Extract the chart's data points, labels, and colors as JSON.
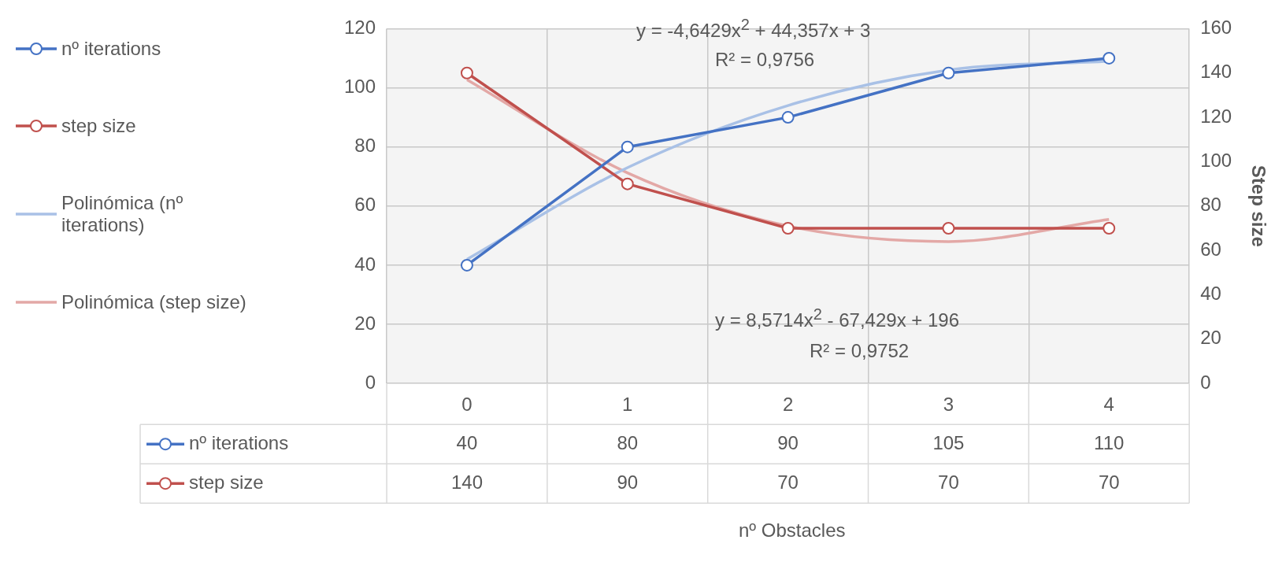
{
  "chart_data": {
    "type": "line",
    "y2label": "Step size",
    "categories": [
      "0",
      "1",
      "2",
      "3",
      "4"
    ],
    "series": [
      {
        "name": "nº iterations",
        "color": "#4472c4",
        "values": [
          40,
          80,
          90,
          105,
          110
        ],
        "value_labels": [
          "40",
          "80",
          "90",
          "105",
          "110"
        ],
        "marker": "circle"
      },
      {
        "name": "step size",
        "color": "#c0504d",
        "values": [
          140,
          90,
          70,
          70,
          70
        ],
        "value_labels": [
          "140",
          "90",
          "70",
          "70",
          "70"
        ],
        "axis": "y2",
        "marker": "circle"
      },
      {
        "name": "Polinómica (nº iterations)",
        "color": "#a9c1e6",
        "values": [
          42,
          73,
          94,
          106,
          109
        ],
        "marker": "none"
      },
      {
        "name": "Polinómica (step size)",
        "color": "#e3a8a6",
        "values": [
          137,
          95,
          71,
          64,
          74
        ],
        "axis": "y2",
        "marker": "none"
      }
    ],
    "ylim": [
      0,
      120
    ],
    "yticks": [
      0,
      20,
      40,
      60,
      80,
      100,
      120
    ],
    "y2lim": [
      0,
      160
    ],
    "y2ticks": [
      0,
      20,
      40,
      60,
      80,
      100,
      120,
      140,
      160
    ],
    "annotations": [
      "y = -4,6429x$^{2}$ + 44,357x + 3",
      "R² = 0,9756",
      "y = 8,5714x$^{2}$ - 67,429x + 196",
      "R² = 0,9752",
      "nº Obstacles"
    ],
    "grid": true,
    "legend": "left"
  }
}
